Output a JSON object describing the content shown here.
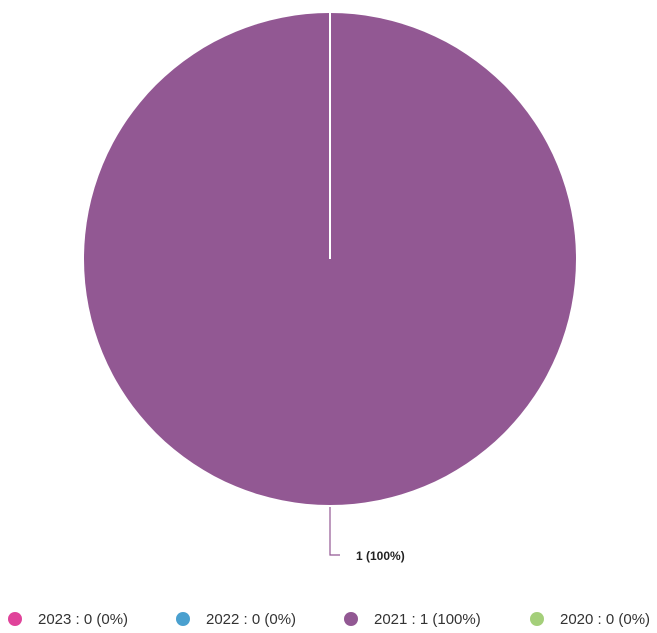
{
  "chart_data": {
    "type": "pie",
    "title": "",
    "series": [
      {
        "name": "2023",
        "value": 0,
        "percent": 0,
        "color": "#e0439a",
        "legend_label": "2023 : 0 (0%)"
      },
      {
        "name": "2022",
        "value": 0,
        "percent": 0,
        "color": "#4aa0cf",
        "legend_label": "2022 : 0 (0%)"
      },
      {
        "name": "2021",
        "value": 1,
        "percent": 100,
        "color": "#925893",
        "legend_label": "2021 : 1 (100%)"
      },
      {
        "name": "2020",
        "value": 0,
        "percent": 0,
        "color": "#a4cf7a",
        "legend_label": "2020 : 0 (0%)"
      }
    ],
    "data_labels": [
      {
        "series": "2021",
        "text": "1 (100%)"
      }
    ],
    "legend_position": "bottom",
    "separator_color": "#ffffff",
    "leader_line_color": "#925893"
  }
}
